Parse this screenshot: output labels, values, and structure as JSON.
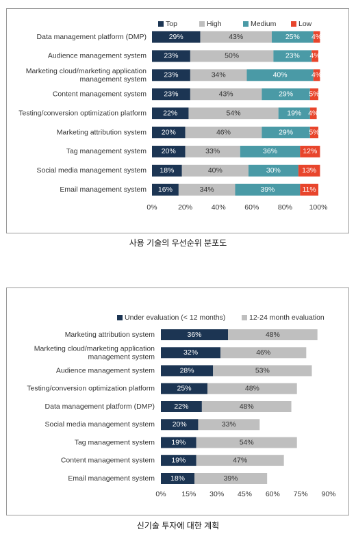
{
  "chart_data": [
    {
      "type": "bar",
      "stacked": true,
      "orientation": "horizontal",
      "caption": "사용 기술의 우선순위 분포도",
      "categories": [
        "Data management platform (DMP)",
        "Audience management system",
        "Marketing cloud/marketing application management system",
        "Content management system",
        "Testing/conversion optimization platform",
        "Marketing attribution system",
        "Tag management system",
        "Social media management system",
        "Email management system"
      ],
      "series": [
        {
          "name": "Top",
          "color": "#1c3553",
          "values": [
            29,
            23,
            23,
            23,
            22,
            20,
            20,
            18,
            16
          ],
          "value_labels": [
            "29%",
            "23%",
            "23%",
            "23%",
            "22%",
            "20%",
            "20%",
            "18%",
            "16%"
          ]
        },
        {
          "name": "High",
          "color": "#bfbfbf",
          "values": [
            43,
            50,
            34,
            43,
            54,
            46,
            33,
            40,
            34
          ],
          "value_labels": [
            "43%",
            "50%",
            "34%",
            "43%",
            "54%",
            "46%",
            "33%",
            "40%",
            "34%"
          ]
        },
        {
          "name": "Medium",
          "color": "#4a9aa6",
          "values": [
            25,
            23,
            40,
            29,
            19,
            29,
            36,
            30,
            39
          ],
          "value_labels": [
            "25%",
            "23%",
            "40%",
            "29%",
            "19%",
            "29%",
            "36%",
            "30%",
            "39%"
          ]
        },
        {
          "name": "Low",
          "color": "#e8452c",
          "values": [
            4,
            4,
            4,
            5,
            4,
            5,
            12,
            13,
            11
          ],
          "value_labels": [
            "4%",
            "4%",
            "4%",
            "5%",
            "4%",
            "5%",
            "12%",
            "13%",
            "11%"
          ]
        }
      ],
      "xlim": [
        0,
        100
      ],
      "xticks": [
        {
          "value": 0,
          "label": "0%"
        },
        {
          "value": 20,
          "label": "20%"
        },
        {
          "value": 40,
          "label": "40%"
        },
        {
          "value": 60,
          "label": "60%"
        },
        {
          "value": 80,
          "label": "80%"
        },
        {
          "value": 100,
          "label": "100%"
        }
      ],
      "legend": "top"
    },
    {
      "type": "bar",
      "stacked": true,
      "orientation": "horizontal",
      "caption": "신기술 투자에 대한 계획",
      "categories": [
        "Marketing attribution system",
        "Marketing cloud/marketing application management system",
        "Audience management system",
        "Testing/conversion optimization platform",
        "Data management platform (DMP)",
        "Social media management system",
        "Tag management system",
        "Content management system",
        "Email management system"
      ],
      "series": [
        {
          "name": "Under evaluation (< 12 months)",
          "color": "#1c3553",
          "values": [
            36,
            32,
            28,
            25,
            22,
            20,
            19,
            19,
            18
          ],
          "value_labels": [
            "36%",
            "32%",
            "28%",
            "25%",
            "22%",
            "20%",
            "19%",
            "19%",
            "18%"
          ]
        },
        {
          "name": "12-24 month evaluation",
          "color": "#bfbfbf",
          "values": [
            48,
            46,
            53,
            48,
            48,
            33,
            54,
            47,
            39
          ],
          "value_labels": [
            "48%",
            "46%",
            "53%",
            "48%",
            "48%",
            "33%",
            "54%",
            "47%",
            "39%"
          ]
        }
      ],
      "xlim": [
        0,
        90
      ],
      "xticks": [
        {
          "value": 0,
          "label": "0%"
        },
        {
          "value": 15,
          "label": "15%"
        },
        {
          "value": 30,
          "label": "30%"
        },
        {
          "value": 45,
          "label": "45%"
        },
        {
          "value": 60,
          "label": "60%"
        },
        {
          "value": 75,
          "label": "75%"
        },
        {
          "value": 90,
          "label": "90%"
        }
      ],
      "legend": "top"
    }
  ]
}
